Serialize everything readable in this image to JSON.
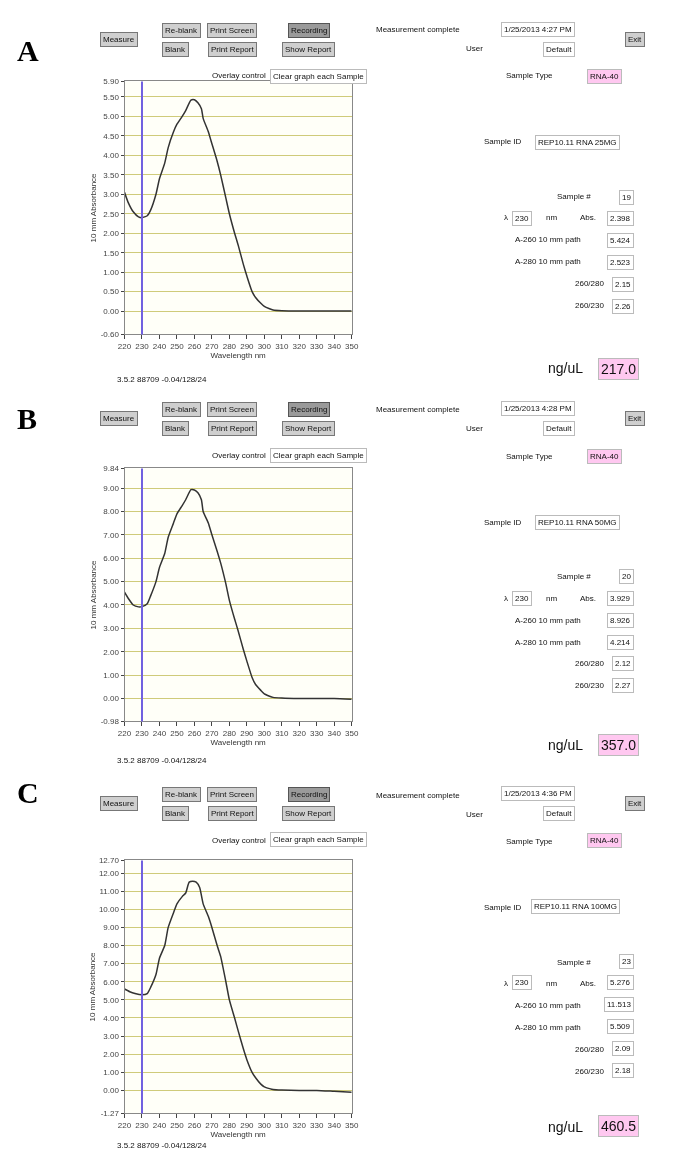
{
  "chart_data": [
    {
      "type": "line",
      "title": "A",
      "xlabel": "Wavelength nm",
      "ylabel": "10 mm Absorbance",
      "xlim": [
        220,
        350
      ],
      "xticks": [
        220,
        230,
        240,
        250,
        260,
        270,
        280,
        290,
        300,
        310,
        320,
        330,
        340,
        350
      ],
      "ylim": [
        -0.6,
        5.9
      ],
      "yticks": [
        {
          "value": -0.6,
          "label": "-0.60"
        },
        {
          "value": 0,
          "label": "0.00"
        },
        {
          "value": 0.5,
          "label": "0.50"
        },
        {
          "value": 1,
          "label": "1.00"
        },
        {
          "value": 1.5,
          "label": "1.50"
        },
        {
          "value": 2,
          "label": "2.00"
        },
        {
          "value": 2.5,
          "label": "2.50"
        },
        {
          "value": 3,
          "label": "3.00"
        },
        {
          "value": 3.5,
          "label": "3.50"
        },
        {
          "value": 4,
          "label": "4.00"
        },
        {
          "value": 4.5,
          "label": "4.50"
        },
        {
          "value": 5,
          "label": "5.00"
        },
        {
          "value": 5.5,
          "label": "5.50"
        },
        {
          "value": 5.9,
          "label": "5.90"
        }
      ],
      "grid": "y",
      "marker": "none",
      "line_style": "solid",
      "ref_lines": [
        {
          "axis": "x",
          "value": 230,
          "color": "#7060e0"
        }
      ],
      "x": [
        220,
        222,
        225,
        228,
        230,
        233,
        235,
        238,
        240,
        243,
        245,
        248,
        250,
        253,
        255,
        258,
        260,
        262,
        264,
        265,
        268,
        270,
        273,
        275,
        278,
        280,
        283,
        285,
        288,
        290,
        293,
        295,
        298,
        300,
        303,
        305,
        310,
        320,
        330,
        340,
        350
      ],
      "series": [
        {
          "color": "#333333",
          "values": [
            3.05,
            2.8,
            2.55,
            2.42,
            2.4,
            2.45,
            2.6,
            3.0,
            3.4,
            3.8,
            4.2,
            4.6,
            4.8,
            5.0,
            5.15,
            5.42,
            5.43,
            5.35,
            5.2,
            4.95,
            4.6,
            4.3,
            3.85,
            3.5,
            2.9,
            2.5,
            2.0,
            1.7,
            1.2,
            0.9,
            0.5,
            0.35,
            0.2,
            0.12,
            0.06,
            0.03,
            0.01,
            0.0,
            0.0,
            0.0,
            0.0
          ]
        }
      ]
    },
    {
      "type": "other",
      "annotations": [
        "Measure",
        "Re-blank",
        "Blank",
        "Print Screen",
        "Print Report",
        "Recording",
        "Show Report",
        "Measurement complete",
        "1/25/2013 4:27 PM",
        "User",
        "Default",
        "Exit",
        "Overlay control",
        "Clear graph each Sample",
        "Sample Type",
        "RNA-40",
        "Sample ID",
        "REP10.11 RNA 25MG",
        "Sample #",
        "19",
        "λ",
        "230",
        "nm",
        "Abs.",
        "2.398",
        "A-260 10 mm path",
        "5.424",
        "A-280 10 mm path",
        "2.523",
        "260/280",
        "2.15",
        "260/230",
        "2.26",
        "ng/uL",
        "217.0",
        "3.5.2 88709 -0.04/128/24"
      ]
    },
    {
      "type": "line",
      "title": "B",
      "xlabel": "Wavelength nm",
      "ylabel": "10 mm Absorbance",
      "xlim": [
        220,
        350
      ],
      "xticks": [
        220,
        230,
        240,
        250,
        260,
        270,
        280,
        290,
        300,
        310,
        320,
        330,
        340,
        350
      ],
      "ylim": [
        -0.98,
        9.84
      ],
      "yticks": [
        {
          "value": -0.98,
          "label": "-0.98"
        },
        {
          "value": 0,
          "label": "0.00"
        },
        {
          "value": 1,
          "label": "1.00"
        },
        {
          "value": 2,
          "label": "2.00"
        },
        {
          "value": 3,
          "label": "3.00"
        },
        {
          "value": 4,
          "label": "4.00"
        },
        {
          "value": 5,
          "label": "5.00"
        },
        {
          "value": 6,
          "label": "6.00"
        },
        {
          "value": 7,
          "label": "7.00"
        },
        {
          "value": 8,
          "label": "8.00"
        },
        {
          "value": 9,
          "label": "9.00"
        },
        {
          "value": 9.84,
          "label": "9.84"
        }
      ],
      "grid": "y",
      "marker": "none",
      "line_style": "solid",
      "ref_lines": [
        {
          "axis": "x",
          "value": 230,
          "color": "#7060e0"
        }
      ],
      "x": [
        220,
        222,
        225,
        228,
        230,
        233,
        235,
        238,
        240,
        243,
        245,
        248,
        250,
        253,
        255,
        258,
        260,
        262,
        264,
        265,
        268,
        270,
        273,
        275,
        278,
        280,
        283,
        285,
        288,
        290,
        293,
        295,
        298,
        300,
        303,
        305,
        310,
        320,
        330,
        340,
        350
      ],
      "series": [
        {
          "color": "#333333",
          "values": [
            4.55,
            4.3,
            4.0,
            3.92,
            3.93,
            4.05,
            4.4,
            5.0,
            5.6,
            6.2,
            6.9,
            7.5,
            7.9,
            8.25,
            8.5,
            8.93,
            8.92,
            8.8,
            8.5,
            8.0,
            7.5,
            7.0,
            6.3,
            5.8,
            4.9,
            4.2,
            3.4,
            2.9,
            2.1,
            1.6,
            0.9,
            0.6,
            0.35,
            0.2,
            0.1,
            0.05,
            0.02,
            0.0,
            0.0,
            0.0,
            -0.03
          ]
        }
      ]
    },
    {
      "type": "other",
      "annotations": [
        "Measure",
        "Re-blank",
        "Blank",
        "Print Screen",
        "Print Report",
        "Recording",
        "Show Report",
        "Measurement complete",
        "1/25/2013 4:28 PM",
        "User",
        "Default",
        "Exit",
        "Overlay control",
        "Clear graph each Sample",
        "Sample Type",
        "RNA-40",
        "Sample ID",
        "REP10.11 RNA 50MG",
        "Sample #",
        "20",
        "λ",
        "230",
        "nm",
        "Abs.",
        "3.929",
        "A-260 10 mm path",
        "8.926",
        "A-280 10 mm path",
        "4.214",
        "260/280",
        "2.12",
        "260/230",
        "2.27",
        "ng/uL",
        "357.0",
        "3.5.2 88709 -0.04/128/24"
      ]
    },
    {
      "type": "line",
      "title": "C",
      "xlabel": "Wavelength nm",
      "ylabel": "10 mm Absorbance",
      "xlim": [
        220,
        350
      ],
      "xticks": [
        220,
        230,
        240,
        250,
        260,
        270,
        280,
        290,
        300,
        310,
        320,
        330,
        340,
        350
      ],
      "ylim": [
        -1.27,
        12.7
      ],
      "yticks": [
        {
          "value": -1.27,
          "label": "-1.27"
        },
        {
          "value": 0,
          "label": "0.00"
        },
        {
          "value": 1,
          "label": "1.00"
        },
        {
          "value": 2,
          "label": "2.00"
        },
        {
          "value": 3,
          "label": "3.00"
        },
        {
          "value": 4,
          "label": "4.00"
        },
        {
          "value": 5,
          "label": "5.00"
        },
        {
          "value": 6,
          "label": "6.00"
        },
        {
          "value": 7,
          "label": "7.00"
        },
        {
          "value": 8,
          "label": "8.00"
        },
        {
          "value": 9,
          "label": "9.00"
        },
        {
          "value": 10,
          "label": "10.00"
        },
        {
          "value": 11,
          "label": "11.00"
        },
        {
          "value": 12,
          "label": "12.00"
        },
        {
          "value": 12.7,
          "label": "12.70"
        }
      ],
      "grid": "y",
      "marker": "none",
      "line_style": "solid",
      "ref_lines": [
        {
          "axis": "x",
          "value": 230,
          "color": "#7060e0"
        }
      ],
      "x": [
        220,
        223,
        226,
        230,
        233,
        235,
        238,
        240,
        243,
        245,
        248,
        250,
        253,
        255,
        257,
        259,
        261,
        263,
        265,
        268,
        270,
        273,
        275,
        278,
        280,
        283,
        285,
        288,
        290,
        293,
        295,
        298,
        300,
        303,
        305,
        310,
        320,
        330,
        340,
        350
      ],
      "series": [
        {
          "color": "#333333",
          "values": [
            5.6,
            5.45,
            5.35,
            5.28,
            5.35,
            5.7,
            6.4,
            7.3,
            8.0,
            9.0,
            9.8,
            10.3,
            10.7,
            10.9,
            11.5,
            11.55,
            11.5,
            11.2,
            10.3,
            9.6,
            9.0,
            8.0,
            7.4,
            6.0,
            5.0,
            4.0,
            3.3,
            2.3,
            1.7,
            1.0,
            0.7,
            0.35,
            0.2,
            0.1,
            0.05,
            0.02,
            0.0,
            0.0,
            -0.05,
            -0.1
          ]
        }
      ]
    },
    {
      "type": "other",
      "annotations": [
        "Measure",
        "Re-blank",
        "Blank",
        "Print Screen",
        "Print Report",
        "Recording",
        "Show Report",
        "Measurement complete",
        "1/25/2013 4:36 PM",
        "User",
        "Default",
        "Exit",
        "Overlay control",
        "Clear graph each Sample",
        "Sample Type",
        "RNA-40",
        "Sample ID",
        "REP10.11 RNA 100MG",
        "Sample #",
        "23",
        "λ",
        "230",
        "nm",
        "Abs.",
        "5.276",
        "A-260 10 mm path",
        "11.513",
        "A-280 10 mm path",
        "5.509",
        "260/280",
        "2.09",
        "260/230",
        "2.18",
        "ng/uL",
        "460.5",
        "3.5.2 88709 -0.04/128/24"
      ]
    }
  ]
}
